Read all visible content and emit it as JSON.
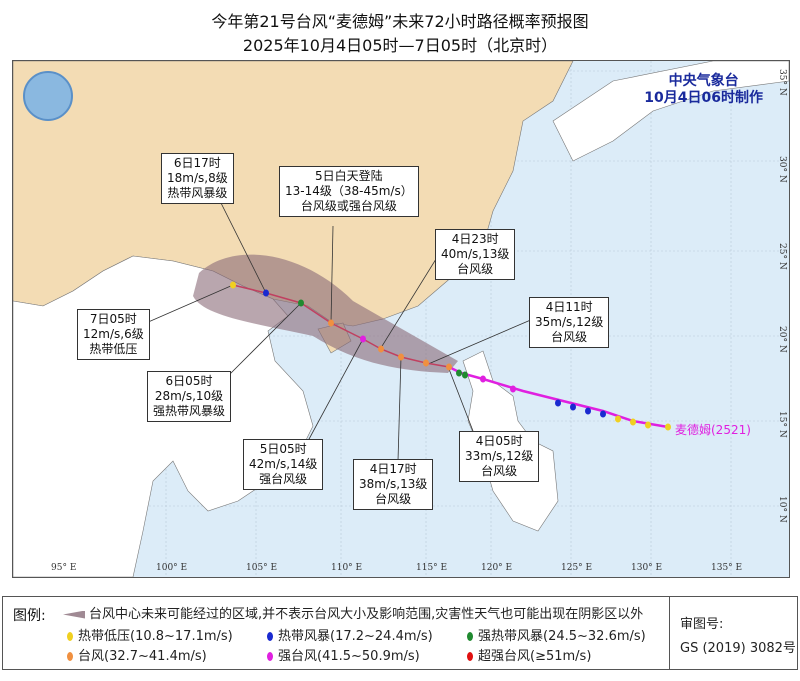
{
  "title": "今年第21号台风“麦德姆”未来72小时路径概率预报图",
  "subtitle": "2025年10月4日05时—7日05时（北京时）",
  "agency": {
    "name": "中央气象台",
    "issued": "10月4日06时制作"
  },
  "typhoon_name": "麦德姆(2521)",
  "lon_ticks": [
    "95° E",
    "100° E",
    "105° E",
    "110° E",
    "115° E",
    "120° E",
    "125° E",
    "130° E",
    "135° E"
  ],
  "lat_ticks": [
    "35° N",
    "30° N",
    "25° N",
    "20° N",
    "15° N",
    "10° N"
  ],
  "forecast_labels": [
    {
      "time": "6日17时",
      "wind": "18m/s,8级",
      "grade": "热带风暴级"
    },
    {
      "time": "5日白天登陆",
      "wind": "13-14级（38-45m/s）",
      "grade": "台风级或强台风级"
    },
    {
      "time": "4日23时",
      "wind": "40m/s,13级",
      "grade": "台风级"
    },
    {
      "time": "4日11时",
      "wind": "35m/s,12级",
      "grade": "台风级"
    },
    {
      "time": "7日05时",
      "wind": "12m/s,6级",
      "grade": "热带低压"
    },
    {
      "time": "6日05时",
      "wind": "28m/s,10级",
      "grade": "强热带风暴级"
    },
    {
      "time": "5日05时",
      "wind": "42m/s,14级",
      "grade": "强台风级"
    },
    {
      "time": "4日17时",
      "wind": "38m/s,13级",
      "grade": "台风级"
    },
    {
      "time": "4日05时",
      "wind": "33m/s,12级",
      "grade": "台风级"
    }
  ],
  "legend": {
    "title": "图例:",
    "cone": "台风中心未来可能经过的区域,并不表示台风大小及影响范围,灾害性天气也可能出现在阴影区以外",
    "items": [
      {
        "label": "热带低压(10.8~17.1m/s)",
        "color": "#f0d020"
      },
      {
        "label": "热带风暴(17.2~24.4m/s)",
        "color": "#1a2ad0"
      },
      {
        "label": "强热带风暴(24.5~32.6m/s)",
        "color": "#208a30"
      },
      {
        "label": "台风(32.7~41.4m/s)",
        "color": "#f09040"
      },
      {
        "label": "强台风(41.5~50.9m/s)",
        "color": "#e020e0"
      },
      {
        "label": "超强台风(≥51m/s)",
        "color": "#e01010"
      }
    ],
    "review_label": "审图号:",
    "review_no": "GS (2019) 3082号"
  },
  "colors": {
    "sea": "#dcecf8",
    "china": "#f3dcb4",
    "land": "#ffffff",
    "cone": "#8a6a78",
    "track_past": "#e020e0",
    "agency": "#1a2a9c"
  }
}
